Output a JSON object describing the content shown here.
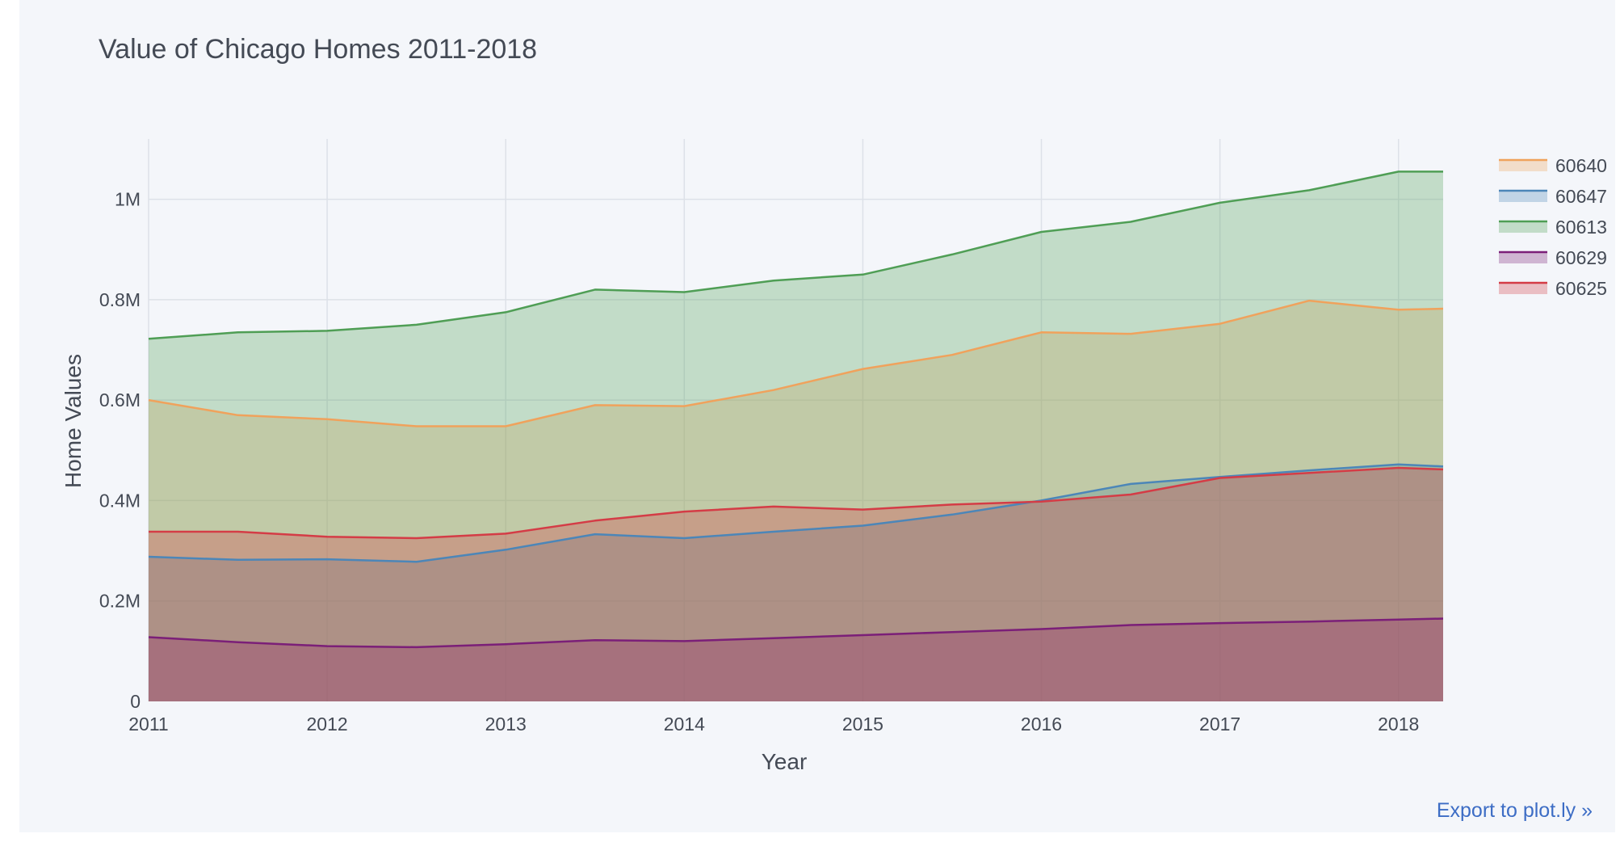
{
  "export_label": "Export to plot.ly »",
  "chart_data": {
    "type": "area",
    "title": "Value of Chicago Homes 2011-2018",
    "xlabel": "Year",
    "ylabel": "Home Values",
    "xlim": [
      2011,
      2018.25
    ],
    "ylim": [
      0,
      1120000
    ],
    "x_ticks": [
      2011,
      2012,
      2013,
      2014,
      2015,
      2016,
      2017,
      2018
    ],
    "x_tick_labels": [
      "2011",
      "2012",
      "2013",
      "2014",
      "2015",
      "2016",
      "2017",
      "2018"
    ],
    "y_ticks": [
      0,
      200000,
      400000,
      600000,
      800000,
      1000000
    ],
    "y_tick_labels": [
      "0",
      "0.2M",
      "0.4M",
      "0.6M",
      "0.8M",
      "1M"
    ],
    "grid": true,
    "legend_position": "top-right",
    "x": [
      2011,
      2011.5,
      2012,
      2012.5,
      2013,
      2013.5,
      2014,
      2014.5,
      2015,
      2015.5,
      2016,
      2016.5,
      2017,
      2017.5,
      2018,
      2018.25
    ],
    "series": [
      {
        "name": "60640",
        "color": "#f0a25c",
        "values": [
          600000,
          570000,
          562000,
          548000,
          548000,
          590000,
          588000,
          620000,
          662000,
          690000,
          735000,
          732000,
          752000,
          798000,
          780000,
          782000
        ]
      },
      {
        "name": "60647",
        "color": "#4c86b8",
        "values": [
          288000,
          282000,
          283000,
          278000,
          302000,
          333000,
          325000,
          338000,
          350000,
          372000,
          400000,
          433000,
          447000,
          460000,
          472000,
          468000
        ]
      },
      {
        "name": "60613",
        "color": "#4f9e55",
        "values": [
          722000,
          735000,
          738000,
          750000,
          775000,
          820000,
          815000,
          838000,
          850000,
          890000,
          935000,
          955000,
          993000,
          1018000,
          1055000,
          1055000
        ]
      },
      {
        "name": "60629",
        "color": "#7b1f78",
        "values": [
          128000,
          118000,
          110000,
          108000,
          114000,
          122000,
          120000,
          126000,
          132000,
          138000,
          144000,
          152000,
          156000,
          159000,
          163000,
          165000
        ]
      },
      {
        "name": "60625",
        "color": "#d43c46",
        "values": [
          338000,
          338000,
          328000,
          325000,
          334000,
          360000,
          378000,
          388000,
          382000,
          392000,
          398000,
          412000,
          445000,
          455000,
          465000,
          462000
        ]
      }
    ]
  }
}
